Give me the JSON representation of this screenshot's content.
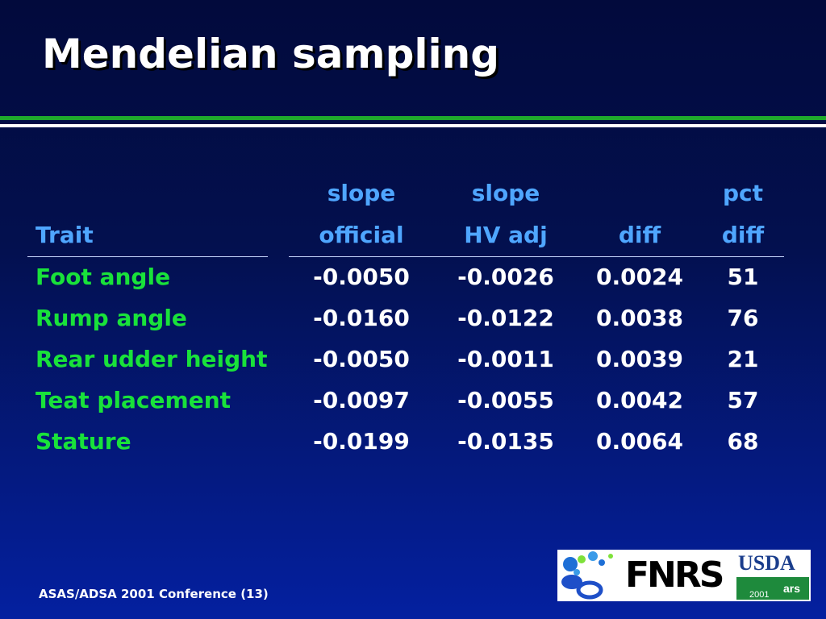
{
  "slide": {
    "title": "Mendelian sampling",
    "footer": "ASAS/ADSA 2001 Conference (13)"
  },
  "table": {
    "header_top": [
      "",
      "slope",
      "slope",
      "",
      "pct"
    ],
    "header_bottom": [
      "Trait",
      "official",
      "HV adj",
      "diff",
      "diff"
    ],
    "rows": [
      {
        "trait": "Foot angle",
        "official": "-0.0050",
        "hv_adj": "-0.0026",
        "diff": "0.0024",
        "pct_diff": "51"
      },
      {
        "trait": "Rump angle",
        "official": "-0.0160",
        "hv_adj": "-0.0122",
        "diff": "0.0038",
        "pct_diff": "76"
      },
      {
        "trait": "Rear udder height",
        "official": "-0.0050",
        "hv_adj": "-0.0011",
        "diff": "0.0039",
        "pct_diff": "21"
      },
      {
        "trait": "Teat placement",
        "official": "-0.0097",
        "hv_adj": "-0.0055",
        "diff": "0.0042",
        "pct_diff": "57"
      },
      {
        "trait": "Stature",
        "official": "-0.0199",
        "hv_adj": "-0.0135",
        "diff": "0.0064",
        "pct_diff": "68"
      }
    ]
  },
  "logo": {
    "fnrs_text": "FNRS",
    "usda_text": "USDA",
    "usda_year": "2001",
    "usda_ars": "ars"
  },
  "colors": {
    "background_top": "#020a3c",
    "background_bottom": "#0420a0",
    "header_text": "#4fa6ff",
    "trait_text": "#19e23a",
    "value_text": "#ffffff",
    "green_rule": "#1faa2c"
  }
}
